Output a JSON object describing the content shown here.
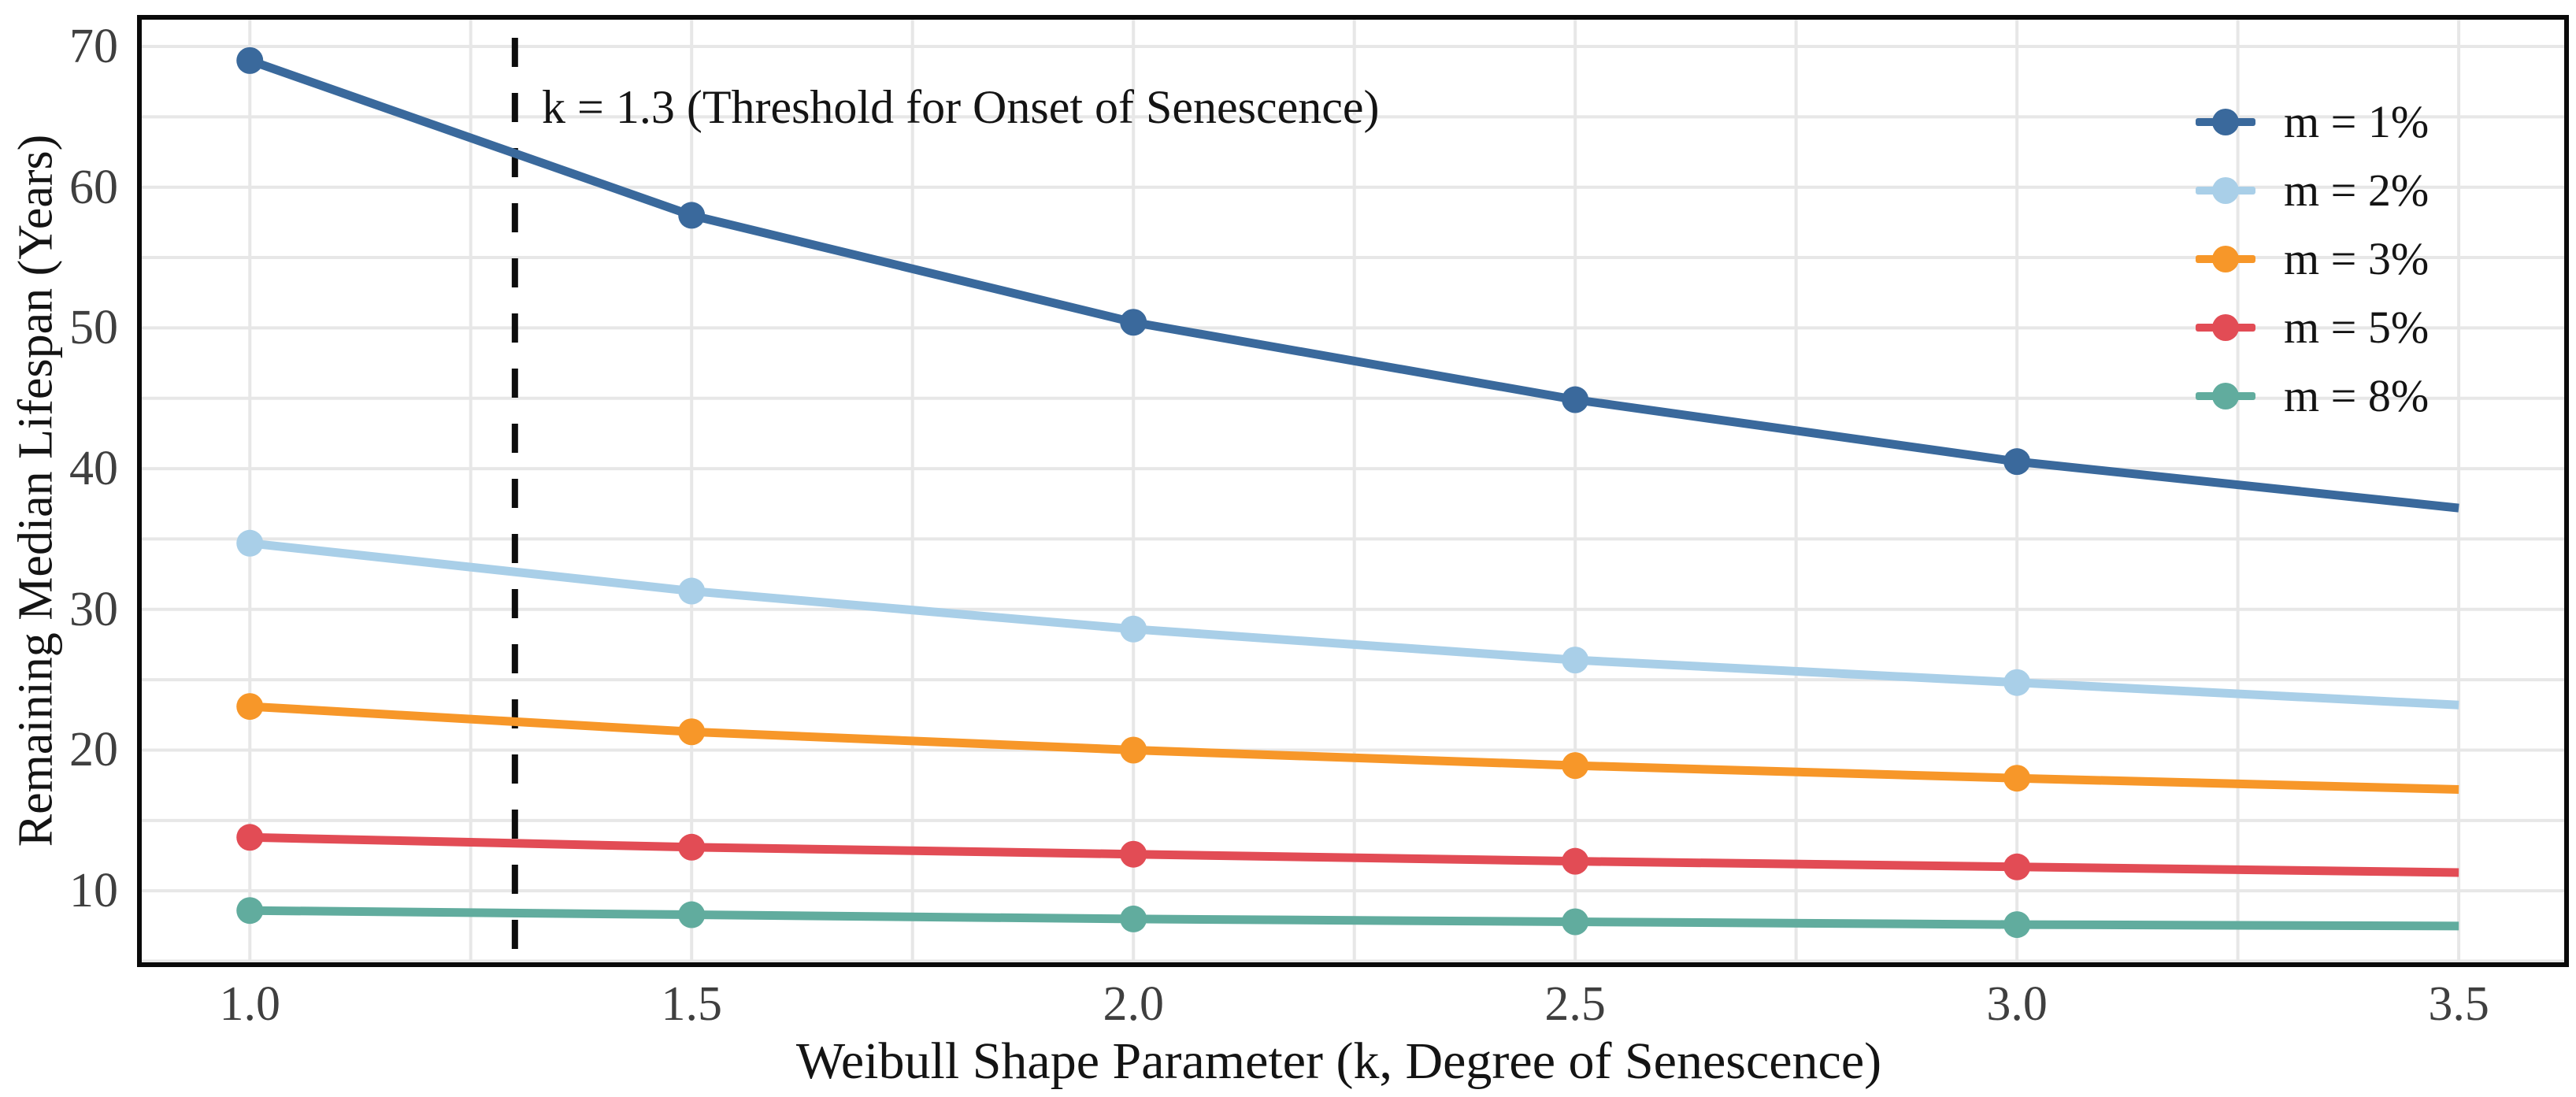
{
  "chart_data": {
    "type": "line",
    "title": "",
    "xlabel": "Weibull Shape Parameter (k, Degree of Senescence)",
    "ylabel": "Remaining Median Lifespan (Years)",
    "x": [
      1.0,
      1.5,
      2.0,
      2.5,
      3.0,
      3.5
    ],
    "x_tick_labels": [
      "1.0",
      "1.5",
      "2.0",
      "2.5",
      "3.0",
      "3.5"
    ],
    "y_ticks": [
      10,
      20,
      30,
      40,
      50,
      60,
      70
    ],
    "xlim": [
      0.875,
      3.622
    ],
    "ylim": [
      4.75,
      72.07
    ],
    "grid": {
      "visible": true,
      "x_minor_step": 0.25,
      "y_minor_step": 5,
      "color": "#e7e7e7"
    },
    "marker_x_max": 3.0,
    "annotation": {
      "text": "k = 1.3 (Threshold for Onset of Senescence)",
      "x": 1.3,
      "line_style": "dashed",
      "line_color": "#0d0d0d"
    },
    "legend": {
      "position": "upper right"
    },
    "series": [
      {
        "name": "m = 1%",
        "color": "#3a699c",
        "values": [
          69.0,
          58.0,
          50.4,
          44.9,
          40.5,
          37.2
        ]
      },
      {
        "name": "m = 2%",
        "color": "#a9cfe8",
        "values": [
          34.7,
          31.3,
          28.6,
          26.4,
          24.8,
          23.2
        ]
      },
      {
        "name": "m = 3%",
        "color": "#f79729",
        "values": [
          23.1,
          21.3,
          20.0,
          18.9,
          18.0,
          17.2
        ]
      },
      {
        "name": "m = 5%",
        "color": "#e24c55",
        "values": [
          13.8,
          13.1,
          12.6,
          12.1,
          11.7,
          11.3
        ]
      },
      {
        "name": "m = 8%",
        "color": "#61ac9e",
        "values": [
          8.6,
          8.3,
          8.0,
          7.8,
          7.6,
          7.5
        ]
      }
    ],
    "axis_color": "#0a0a0a",
    "tick_label_color": "#3f3f3f",
    "text_color": "#141414"
  }
}
